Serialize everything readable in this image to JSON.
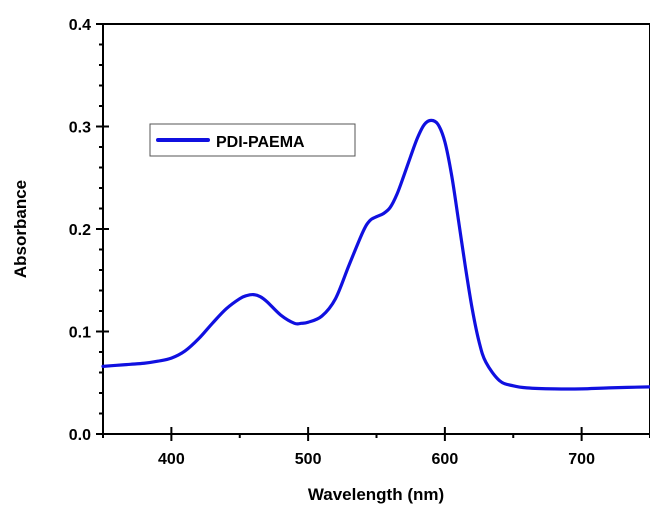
{
  "chart_data": {
    "type": "line",
    "xlabel": "Wavelength (nm)",
    "ylabel": "Absorbance",
    "xlim": [
      350,
      750
    ],
    "ylim": [
      0.0,
      0.4
    ],
    "x_ticks": [
      "400",
      "500",
      "600",
      "700"
    ],
    "y_ticks": [
      "0.0",
      "0.1",
      "0.2",
      "0.3",
      "0.4"
    ],
    "legend_position": "top-left",
    "grid": false,
    "series": [
      {
        "name": "PDI-PAEMA",
        "color": "#1010e0",
        "x": [
          350,
          360,
          370,
          380,
          390,
          400,
          410,
          420,
          430,
          440,
          450,
          455,
          460,
          465,
          470,
          480,
          490,
          495,
          500,
          510,
          520,
          530,
          540,
          545,
          550,
          555,
          560,
          565,
          570,
          575,
          580,
          585,
          590,
          595,
          600,
          605,
          610,
          615,
          620,
          625,
          630,
          640,
          650,
          660,
          680,
          700,
          720,
          750
        ],
        "y": [
          0.066,
          0.067,
          0.068,
          0.069,
          0.071,
          0.074,
          0.081,
          0.093,
          0.108,
          0.122,
          0.132,
          0.135,
          0.136,
          0.134,
          0.129,
          0.116,
          0.108,
          0.108,
          0.109,
          0.115,
          0.132,
          0.165,
          0.197,
          0.208,
          0.212,
          0.215,
          0.221,
          0.234,
          0.252,
          0.271,
          0.289,
          0.302,
          0.306,
          0.302,
          0.285,
          0.252,
          0.208,
          0.163,
          0.122,
          0.09,
          0.07,
          0.052,
          0.047,
          0.045,
          0.044,
          0.044,
          0.045,
          0.046
        ]
      }
    ]
  }
}
